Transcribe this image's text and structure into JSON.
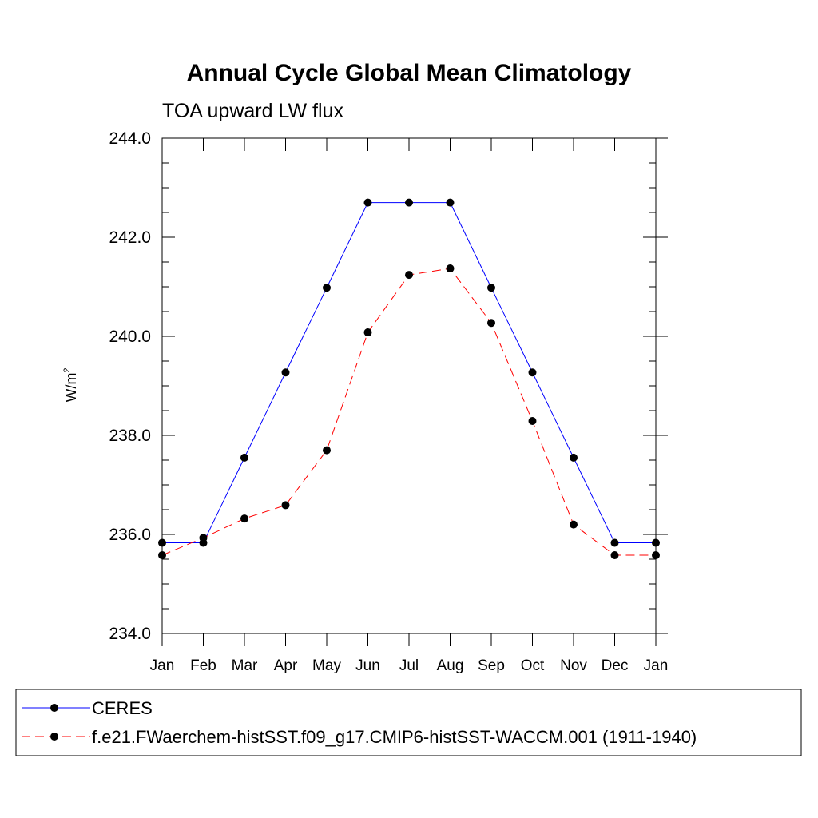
{
  "chart_data": {
    "type": "line",
    "title": "Annual Cycle Global Mean Climatology",
    "subtitle": "TOA upward LW flux",
    "xlabel": "",
    "ylabel": "W/m",
    "ylabel_superscript": "2",
    "ylim": [
      234.0,
      244.0
    ],
    "yticks": [
      "234.0",
      "236.0",
      "238.0",
      "240.0",
      "242.0",
      "244.0"
    ],
    "categories": [
      "Jan",
      "Feb",
      "Mar",
      "Apr",
      "May",
      "Jun",
      "Jul",
      "Aug",
      "Sep",
      "Oct",
      "Nov",
      "Dec",
      "Jan"
    ],
    "series": [
      {
        "name": "CERES",
        "color": "#0000ff",
        "dash": "solid",
        "values": [
          235.83,
          235.83,
          237.55,
          239.27,
          240.98,
          242.7,
          242.7,
          242.7,
          240.98,
          239.27,
          237.55,
          235.83,
          235.83
        ]
      },
      {
        "name": "f.e21.FWaerchem-histSST.f09_g17.CMIP6-histSST-WACCM.001 (1911-1940)",
        "color": "#ff0000",
        "dash": "dashed",
        "values": [
          235.58,
          235.93,
          236.32,
          236.59,
          237.7,
          240.08,
          241.24,
          241.37,
          240.27,
          238.29,
          236.2,
          235.58,
          235.58
        ]
      }
    ],
    "legend_position": "bottom"
  }
}
